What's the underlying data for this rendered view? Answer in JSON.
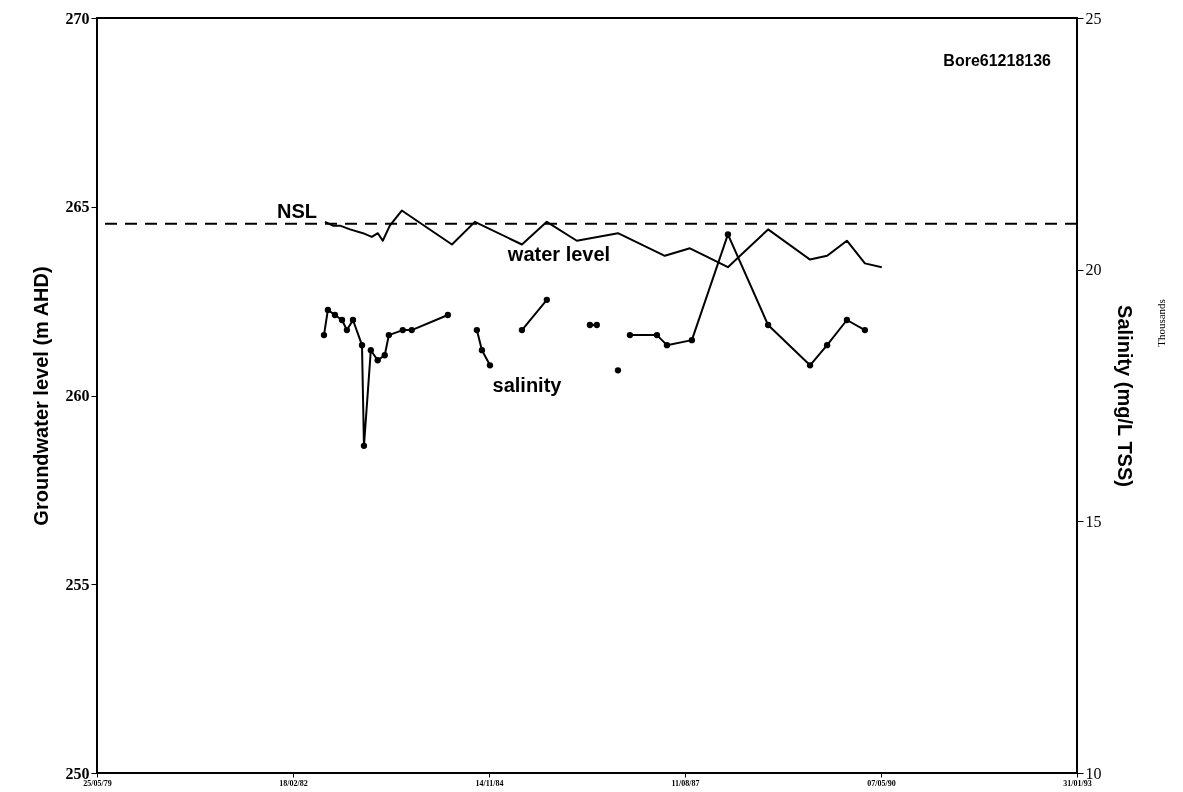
{
  "chart_data": {
    "type": "line",
    "title": "Bore61218136",
    "ylabel": "Groundwater level (m AHD)",
    "y2label": "Salinity (mg/L TSS)",
    "annotations": [
      "Thousands"
    ],
    "xlim": [
      "1979-05-25",
      "1993-01-31"
    ],
    "xticks": [
      {
        "value": "1979-05-25",
        "label": "25/05/79"
      },
      {
        "value": "1982-02-18",
        "label": "18/02/82"
      },
      {
        "value": "1984-11-14",
        "label": "14/11/84"
      },
      {
        "value": "1987-08-11",
        "label": "11/08/87"
      },
      {
        "value": "1990-05-07",
        "label": "07/05/90"
      },
      {
        "value": "1993-01-31",
        "label": "31/01/93"
      }
    ],
    "ylim": [
      250,
      270
    ],
    "yticks": [
      250,
      255,
      260,
      265,
      270
    ],
    "y2lim": [
      10,
      25
    ],
    "y2ticks": [
      10,
      15,
      20,
      25
    ],
    "grid": false,
    "legend": false,
    "ref_lines": [
      {
        "axis": "y",
        "value": 264.55,
        "label": "NSL",
        "line_style": "dashed",
        "color": "#000000"
      }
    ],
    "series": [
      {
        "name": "water level",
        "color": "#000000",
        "axis": "y",
        "marker": "none",
        "x": [
          "1982-07-31",
          "1982-09-10",
          "1982-10-16",
          "1982-12-06",
          "1983-02-10",
          "1983-03-27",
          "1983-04-27",
          "1983-05-22",
          "1983-06-27",
          "1983-08-27",
          "1984-05-09",
          "1984-09-03",
          "1985-05-01",
          "1985-09-05",
          "1986-02-05",
          "1986-09-03",
          "1987-04-30",
          "1987-09-05",
          "1988-03-17",
          "1988-10-08",
          "1989-05-10",
          "1989-08-05",
          "1989-11-14",
          "1990-02-14",
          "1990-05-11"
        ],
        "values": [
          264.6,
          264.5,
          264.5,
          264.4,
          264.3,
          264.2,
          264.3,
          264.1,
          264.5,
          264.9,
          264.0,
          264.6,
          264.0,
          264.6,
          264.1,
          264.3,
          263.7,
          263.9,
          263.4,
          264.4,
          263.6,
          263.7,
          264.1,
          263.5,
          263.4
        ]
      },
      {
        "name": "salinity",
        "color": "#000000",
        "axis": "y2",
        "marker": "circle",
        "x": [
          "1982-07-26",
          "1982-08-15",
          "1982-09-20",
          "1982-10-26",
          "1982-11-20",
          "1982-12-21",
          "1983-02-05",
          "1983-02-15",
          "1983-03-22",
          "1983-04-26",
          "1983-06-01",
          "1983-06-22",
          "1983-09-01",
          "1983-10-17",
          "1984-04-18",
          "1984-06-01",
          "1984-09-13",
          "1984-10-09",
          "1984-11-19",
          "1985-02-01",
          "1985-05-01",
          "1985-09-05",
          "1986-01-01",
          "1986-04-13",
          "1986-05-18",
          "1986-07-01",
          "1986-09-03",
          "1986-10-01",
          "1986-11-03",
          "1987-03-21",
          "1987-05-11",
          "1987-09-15",
          "1988-03-17",
          "1988-10-08",
          "1989-05-10",
          "1989-08-05",
          "1989-11-14",
          "1990-02-14"
        ],
        "values": [
          18.7,
          19.2,
          19.1,
          19.0,
          18.8,
          19.0,
          18.5,
          16.5,
          18.4,
          18.2,
          18.3,
          18.7,
          18.8,
          18.8,
          19.1,
          null,
          18.8,
          18.4,
          18.1,
          null,
          18.8,
          19.4,
          null,
          18.9,
          18.9,
          null,
          18.0,
          null,
          18.7,
          18.7,
          18.5,
          18.6,
          20.7,
          18.9,
          18.1,
          18.5,
          19.0,
          18.8
        ]
      }
    ]
  }
}
